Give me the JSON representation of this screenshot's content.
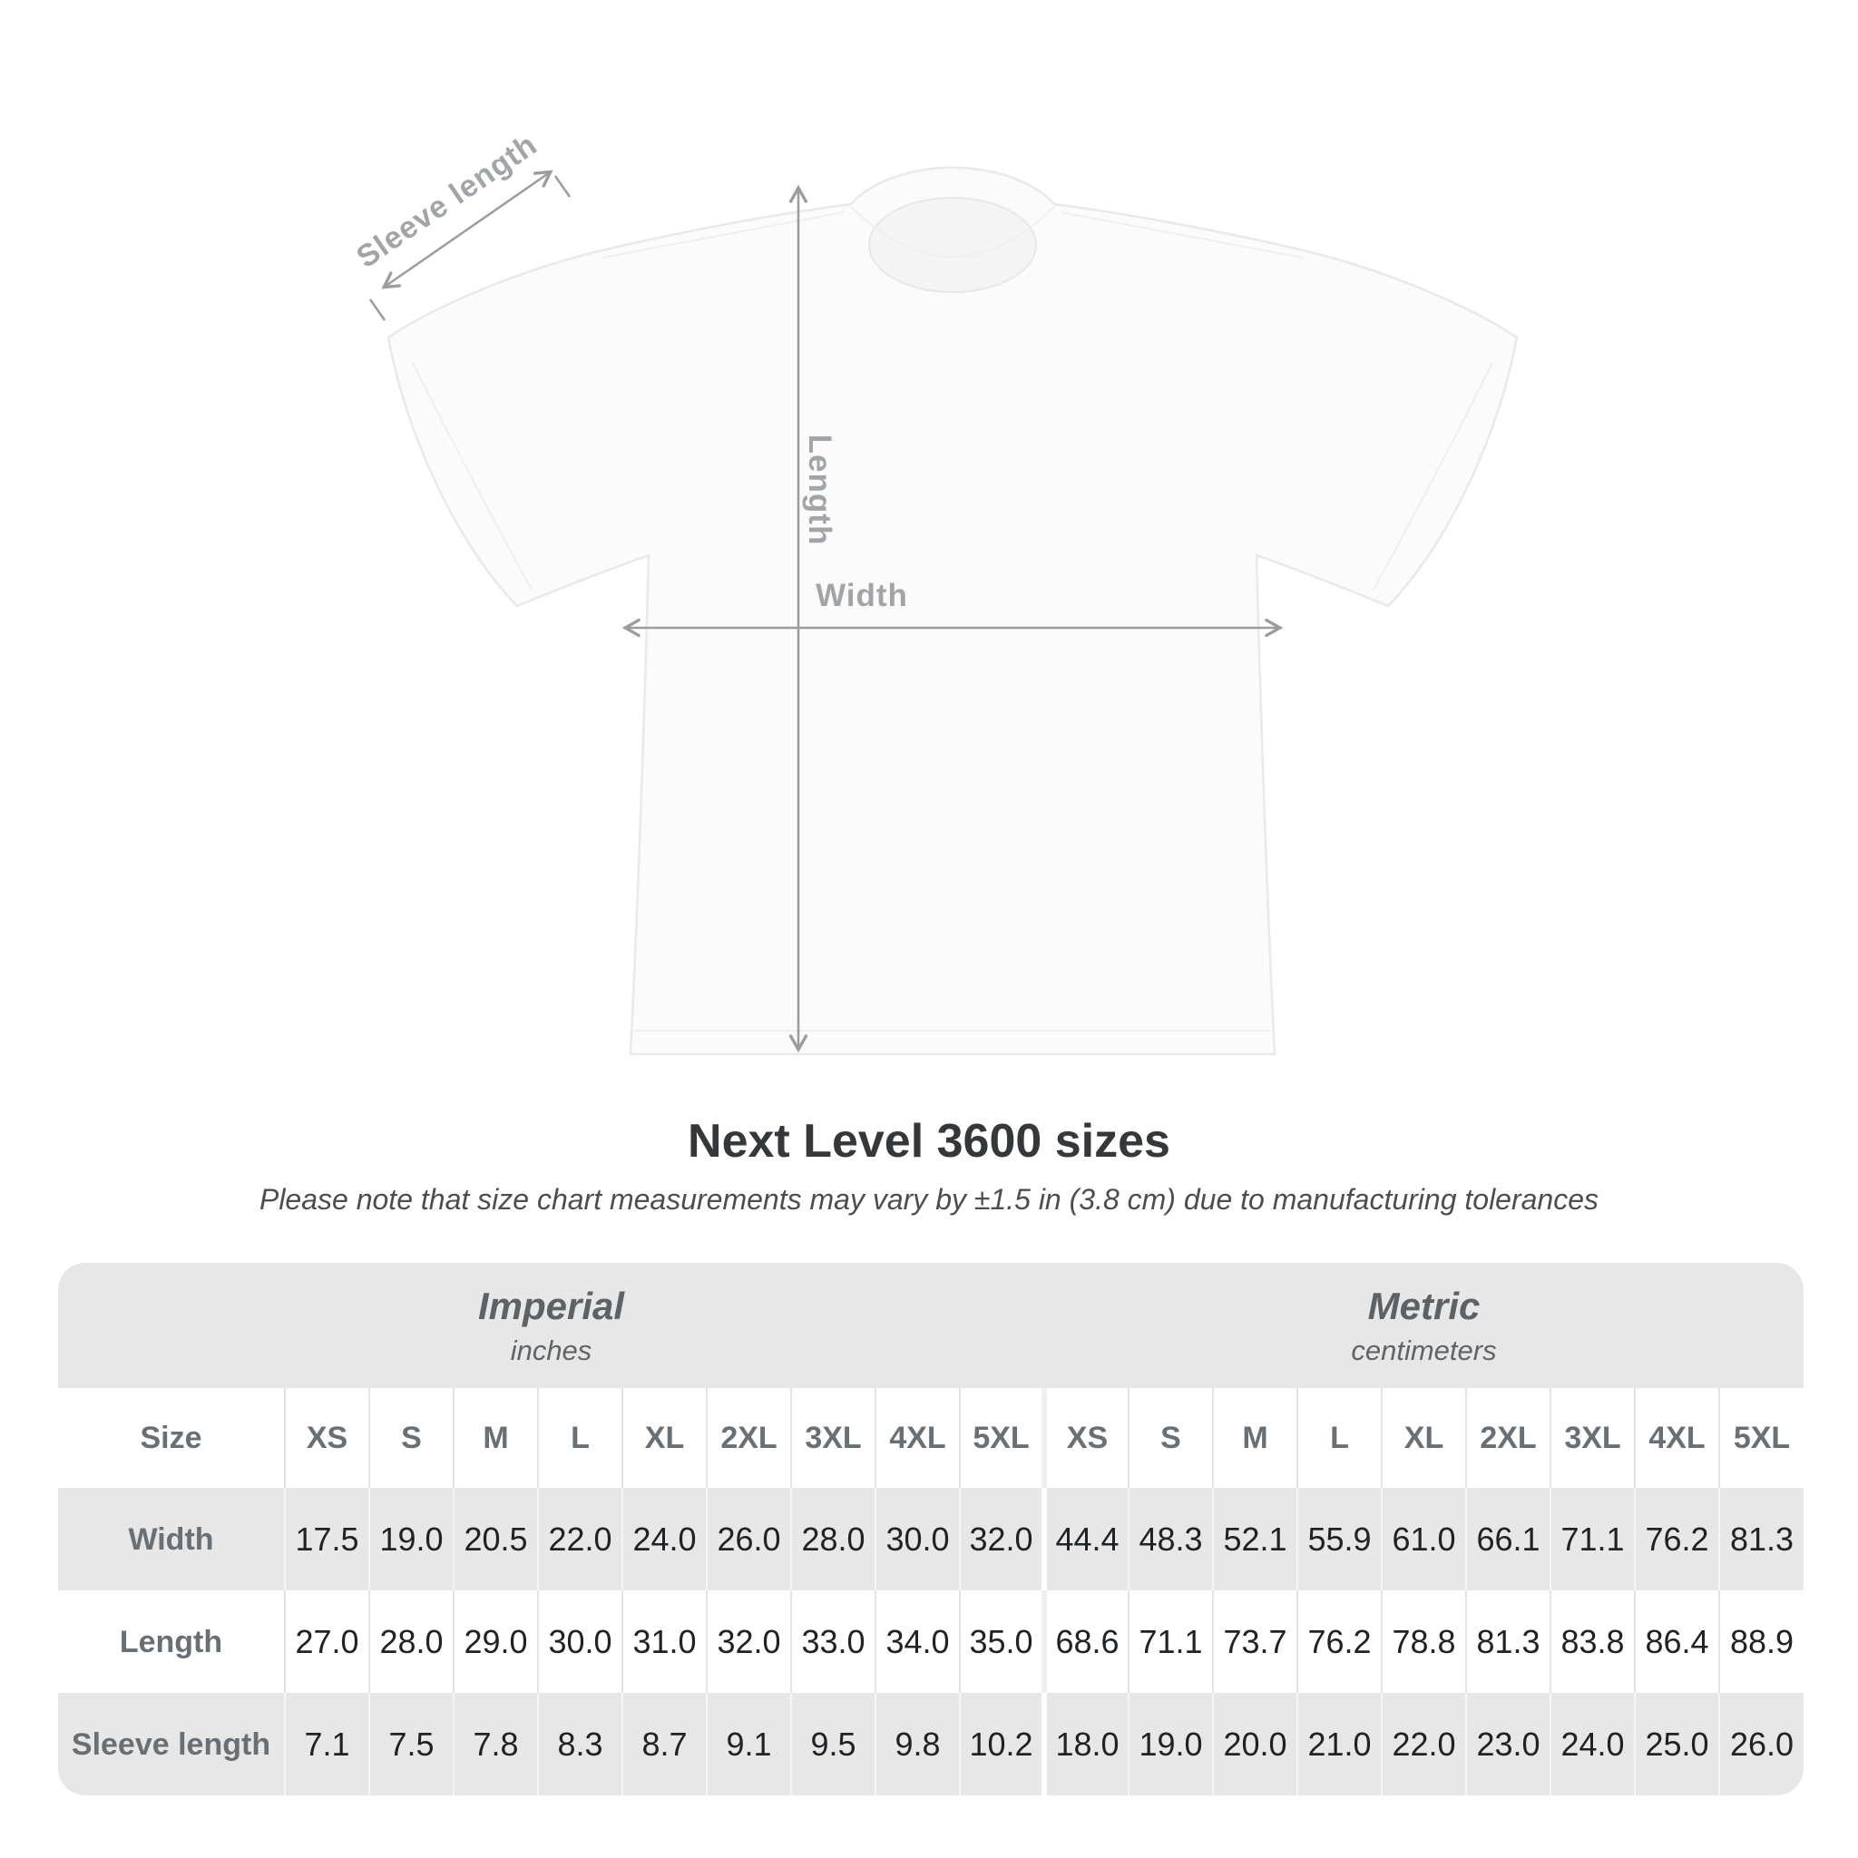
{
  "diagram": {
    "sleeve_length_label": "Sleeve length",
    "length_label": "Length",
    "width_label": "Width"
  },
  "heading": {
    "title": "Next Level 3600 sizes",
    "subtitle": "Please note that size chart measurements may vary by ±1.5 in (3.8 cm) due to manufacturing tolerances"
  },
  "table": {
    "unit_groups": [
      {
        "name": "Imperial",
        "unit": "inches"
      },
      {
        "name": "Metric",
        "unit": "centimeters"
      }
    ],
    "size_label": "Size",
    "sizes": [
      "XS",
      "S",
      "M",
      "L",
      "XL",
      "2XL",
      "3XL",
      "4XL",
      "5XL"
    ],
    "rows": [
      {
        "label": "Width",
        "imperial": [
          "17.5",
          "19.0",
          "20.5",
          "22.0",
          "24.0",
          "26.0",
          "28.0",
          "30.0",
          "32.0"
        ],
        "metric": [
          "44.4",
          "48.3",
          "52.1",
          "55.9",
          "61.0",
          "66.1",
          "71.1",
          "76.2",
          "81.3"
        ]
      },
      {
        "label": "Length",
        "imperial": [
          "27.0",
          "28.0",
          "29.0",
          "30.0",
          "31.0",
          "32.0",
          "33.0",
          "34.0",
          "35.0"
        ],
        "metric": [
          "68.6",
          "71.1",
          "73.7",
          "76.2",
          "78.8",
          "81.3",
          "83.8",
          "86.4",
          "88.9"
        ]
      },
      {
        "label": "Sleeve length",
        "imperial": [
          "7.1",
          "7.5",
          "7.8",
          "8.3",
          "8.7",
          "9.1",
          "9.5",
          "9.8",
          "10.2"
        ],
        "metric": [
          "18.0",
          "19.0",
          "20.0",
          "21.0",
          "22.0",
          "23.0",
          "24.0",
          "25.0",
          "26.0"
        ]
      }
    ]
  },
  "colors": {
    "arrow_gray": "#9c9c9c",
    "diagram_label_gray": "#a2a5a7",
    "table_band_gray": "#e7e7e7",
    "header_text_gray": "#697075",
    "value_text": "#202325",
    "title_text": "#35383a"
  }
}
